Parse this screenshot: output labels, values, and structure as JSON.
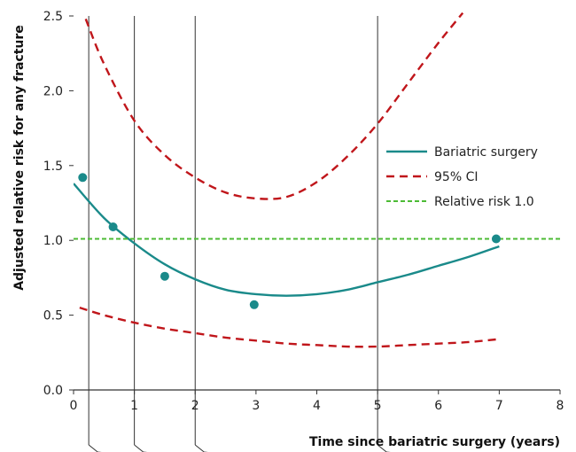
{
  "chart_data": {
    "type": "line",
    "xlabel": "Time since bariatric surgery (years)",
    "ylabel": "Adjusted relative risk for any fracture",
    "xlim": [
      0,
      8
    ],
    "ylim": [
      0,
      2.5
    ],
    "xticks": [
      "0",
      "1",
      "2",
      "3",
      "4",
      "5",
      "6",
      "7",
      "8"
    ],
    "yticks": [
      "0.0",
      "0.5",
      "1.0",
      "1.5",
      "2.0",
      "2.5"
    ],
    "grid": false,
    "legend_position": "top-right",
    "legend": [
      "Bariatric surgery",
      "95% CI",
      "Relative risk 1.0"
    ],
    "series": [
      {
        "name": "Bariatric surgery",
        "style": "solid",
        "color": "#1a8a8a",
        "x": [
          0.0,
          0.5,
          1.0,
          1.5,
          2.0,
          2.5,
          3.0,
          3.5,
          4.0,
          4.5,
          5.0,
          5.5,
          6.0,
          6.5,
          7.0
        ],
        "y": [
          1.38,
          1.15,
          0.98,
          0.84,
          0.74,
          0.67,
          0.64,
          0.63,
          0.64,
          0.67,
          0.72,
          0.77,
          0.83,
          0.89,
          0.96
        ]
      },
      {
        "name": "95% CI",
        "style": "dashed",
        "color": "#c0161b",
        "x": [
          0.2,
          0.5,
          1.0,
          1.5,
          2.0,
          2.5,
          3.0,
          3.5,
          4.0,
          4.5,
          5.0,
          5.5,
          6.0,
          6.4
        ],
        "y": [
          2.48,
          2.18,
          1.8,
          1.57,
          1.42,
          1.32,
          1.28,
          1.29,
          1.39,
          1.56,
          1.78,
          2.05,
          2.32,
          2.52
        ]
      },
      {
        "name": "95% CI lower",
        "style": "dashed",
        "color": "#c0161b",
        "x": [
          0.1,
          0.5,
          1.0,
          1.5,
          2.0,
          2.5,
          3.0,
          3.5,
          4.0,
          4.5,
          5.0,
          5.5,
          6.0,
          6.5,
          7.0
        ],
        "y": [
          0.55,
          0.5,
          0.45,
          0.41,
          0.38,
          0.35,
          0.33,
          0.31,
          0.3,
          0.29,
          0.29,
          0.3,
          0.31,
          0.32,
          0.34
        ]
      },
      {
        "name": "Relative risk 1.0",
        "style": "dotted",
        "color": "#4cbb35",
        "x": [
          0,
          8
        ],
        "y": [
          1.01,
          1.01
        ]
      }
    ],
    "points": [
      {
        "x": 0.15,
        "y": 1.42
      },
      {
        "x": 0.65,
        "y": 1.09
      },
      {
        "x": 1.5,
        "y": 0.76
      },
      {
        "x": 2.97,
        "y": 0.57
      },
      {
        "x": 6.95,
        "y": 1.01
      }
    ],
    "vertical_lines_x": [
      0.25,
      1.0,
      2.0,
      5.0
    ]
  }
}
